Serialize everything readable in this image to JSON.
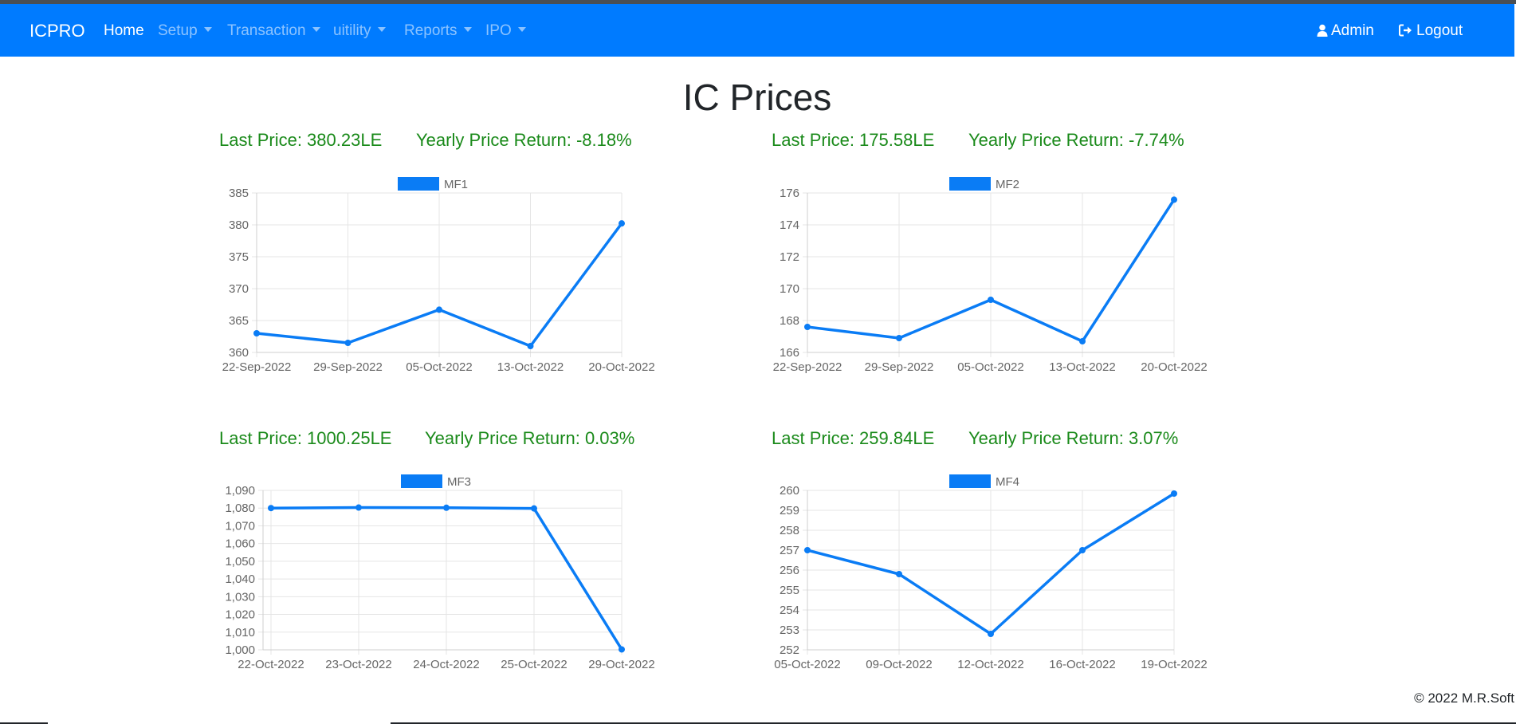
{
  "brand": "ICPRO",
  "nav": {
    "home": "Home",
    "setup": "Setup",
    "transaction": "Transaction",
    "utility": "uitility",
    "reports": "Reports",
    "ipo": "IPO",
    "admin": "Admin",
    "logout": "Logout"
  },
  "page_title": "IC Prices",
  "panels": [
    {
      "last_price": "Last Price: 380.23LE",
      "yearly_return": "Yearly Price Return: -8.18%"
    },
    {
      "last_price": "Last Price: 175.58LE",
      "yearly_return": "Yearly Price Return: -7.74%"
    },
    {
      "last_price": "Last Price: 1000.25LE",
      "yearly_return": "Yearly Price Return: 0.03%"
    },
    {
      "last_price": "Last Price: 259.84LE",
      "yearly_return": "Yearly Price Return: 3.07%"
    }
  ],
  "footer": "© 2022 M.R.Soft",
  "colors": {
    "navbar": "#007bff",
    "line": "#0a7cf5",
    "metric_text": "#1a8a1a"
  },
  "chart_data": [
    {
      "type": "line",
      "title": "",
      "series": [
        {
          "name": "MF1",
          "values": [
            363,
            361.5,
            366.7,
            361,
            380.23
          ]
        }
      ],
      "categories": [
        "22-Sep-2022",
        "29-Sep-2022",
        "05-Oct-2022",
        "13-Oct-2022",
        "20-Oct-2022"
      ],
      "ylim": [
        360,
        385
      ],
      "yticks": [
        "385",
        "380",
        "375",
        "370",
        "365",
        "360"
      ],
      "legend": "top-center",
      "grid": true
    },
    {
      "type": "line",
      "title": "",
      "series": [
        {
          "name": "MF2",
          "values": [
            167.6,
            166.9,
            169.3,
            166.7,
            175.58
          ]
        }
      ],
      "categories": [
        "22-Sep-2022",
        "29-Sep-2022",
        "05-Oct-2022",
        "13-Oct-2022",
        "20-Oct-2022"
      ],
      "ylim": [
        166,
        176
      ],
      "yticks": [
        "176",
        "174",
        "172",
        "170",
        "168",
        "166"
      ],
      "legend": "top-center",
      "grid": true
    },
    {
      "type": "line",
      "title": "",
      "series": [
        {
          "name": "MF3",
          "values": [
            1080,
            1080.3,
            1080.2,
            1079.8,
            1000.25
          ]
        }
      ],
      "categories": [
        "22-Oct-2022",
        "23-Oct-2022",
        "24-Oct-2022",
        "25-Oct-2022",
        "29-Oct-2022"
      ],
      "ylim": [
        1000,
        1090
      ],
      "yticks": [
        "1,090",
        "1,080",
        "1,070",
        "1,060",
        "1,050",
        "1,040",
        "1,030",
        "1,020",
        "1,010",
        "1,000"
      ],
      "legend": "top-center",
      "grid": true
    },
    {
      "type": "line",
      "title": "",
      "series": [
        {
          "name": "MF4",
          "values": [
            257,
            255.8,
            252.8,
            257,
            259.84
          ]
        }
      ],
      "categories": [
        "05-Oct-2022",
        "09-Oct-2022",
        "12-Oct-2022",
        "16-Oct-2022",
        "19-Oct-2022"
      ],
      "ylim": [
        252,
        260
      ],
      "yticks": [
        "260",
        "259",
        "258",
        "257",
        "256",
        "255",
        "254",
        "253",
        "252"
      ],
      "legend": "top-center",
      "grid": true
    }
  ]
}
